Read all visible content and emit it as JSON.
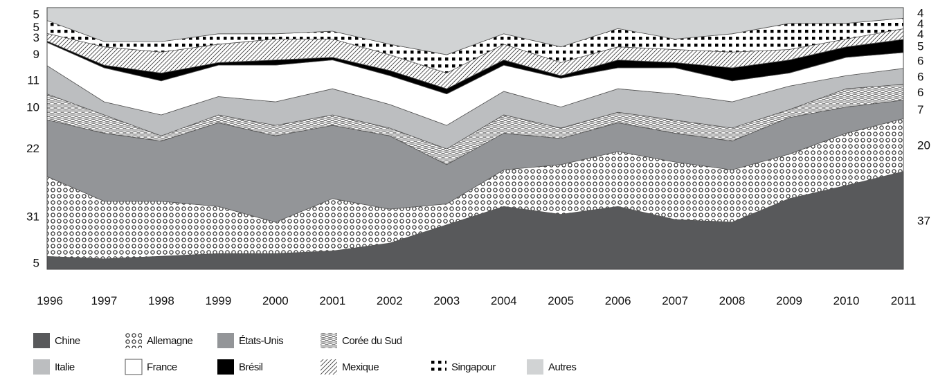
{
  "chart_data": {
    "type": "area",
    "stacked": true,
    "normalized_percent": true,
    "title": "",
    "xlabel": "",
    "ylabel": "",
    "ylim": [
      0,
      100
    ],
    "x": [
      "1996",
      "1997",
      "1998",
      "1999",
      "2000",
      "2001",
      "2002",
      "2003",
      "2004",
      "2005",
      "2006",
      "2007",
      "2008",
      "2009",
      "2010",
      "2011"
    ],
    "series": [
      {
        "name": "Chine",
        "color": "#58595b",
        "pattern": "solid",
        "values": [
          5,
          4,
          5,
          6,
          6,
          7,
          10,
          17,
          24,
          21,
          24,
          19,
          18,
          27,
          32,
          37
        ]
      },
      {
        "name": "Allemagne",
        "color": "#ffffff",
        "pattern": "circles",
        "values": [
          31,
          22,
          21,
          18,
          12,
          20,
          13,
          8,
          14,
          19,
          21,
          22,
          20,
          17,
          20,
          20
        ]
      },
      {
        "name": "États-Unis",
        "color": "#939598",
        "pattern": "solid",
        "values": [
          22,
          26,
          23,
          32,
          33,
          28,
          28,
          15,
          14,
          10,
          11,
          11,
          11,
          14,
          10,
          7
        ]
      },
      {
        "name": "Corée du Sud",
        "color": "#ffffff",
        "pattern": "crosshatch",
        "values": [
          10,
          7,
          2,
          3,
          4,
          4,
          3,
          6,
          7,
          4,
          4,
          5,
          5,
          3,
          7,
          6
        ]
      },
      {
        "name": "Italie",
        "color": "#bcbec0",
        "pattern": "solid",
        "values": [
          11,
          5,
          8,
          7,
          9,
          10,
          9,
          9,
          9,
          8,
          9,
          10,
          10,
          9,
          5,
          6
        ]
      },
      {
        "name": "France",
        "color": "#ffffff",
        "pattern": "solid",
        "values": [
          9,
          13,
          13,
          12,
          14,
          11,
          11,
          12,
          10,
          11,
          8,
          10,
          8,
          5,
          7,
          6
        ]
      },
      {
        "name": "Brésil",
        "color": "#000000",
        "pattern": "solid",
        "values": [
          0.5,
          1,
          3,
          1,
          2,
          1,
          2,
          2,
          2,
          1,
          3,
          2,
          5,
          5,
          4,
          5
        ]
      },
      {
        "name": "Mexique",
        "color": "#ffffff",
        "pattern": "diagonal",
        "values": [
          3,
          7,
          8,
          7,
          8,
          7,
          6,
          6,
          6,
          5,
          5,
          5,
          6,
          4,
          3,
          4
        ]
      },
      {
        "name": "Singapour",
        "color": "#ffffff",
        "pattern": "squares",
        "values": [
          5,
          2,
          4,
          4,
          2,
          3,
          4,
          7,
          4,
          6,
          7,
          4,
          7,
          10,
          6,
          4
        ]
      },
      {
        "name": "Autres",
        "color": "#d1d3d4",
        "pattern": "solid",
        "values": [
          5,
          13,
          13,
          10,
          10,
          9,
          14,
          18,
          10,
          15,
          8,
          12,
          10,
          6,
          6,
          4
        ]
      }
    ],
    "start_labels": [
      {
        "series": 9,
        "text": "5"
      },
      {
        "series": 8,
        "text": "5"
      },
      {
        "series": 7,
        "text": "3"
      },
      {
        "series": 5,
        "text": "9"
      },
      {
        "series": 4,
        "text": "11"
      },
      {
        "series": 3,
        "text": "10"
      },
      {
        "series": 2,
        "text": "22"
      },
      {
        "series": 1,
        "text": "31"
      },
      {
        "series": 0,
        "text": "5"
      }
    ],
    "end_labels": [
      {
        "series": 9,
        "text": "4"
      },
      {
        "series": 8,
        "text": "4"
      },
      {
        "series": 7,
        "text": "4"
      },
      {
        "series": 6,
        "text": "5"
      },
      {
        "series": 5,
        "text": "6"
      },
      {
        "series": 4,
        "text": "6"
      },
      {
        "series": 3,
        "text": "6"
      },
      {
        "series": 2,
        "text": "7"
      },
      {
        "series": 1,
        "text": "20"
      },
      {
        "series": 0,
        "text": "37"
      }
    ],
    "legend": {
      "placement": "bottom",
      "rows": [
        [
          "Chine",
          "Allemagne",
          "États-Unis",
          "Corée du Sud"
        ],
        [
          "Italie",
          "France",
          "Brésil",
          "Mexique",
          "Singapour",
          "Autres"
        ]
      ]
    },
    "grid": false
  }
}
